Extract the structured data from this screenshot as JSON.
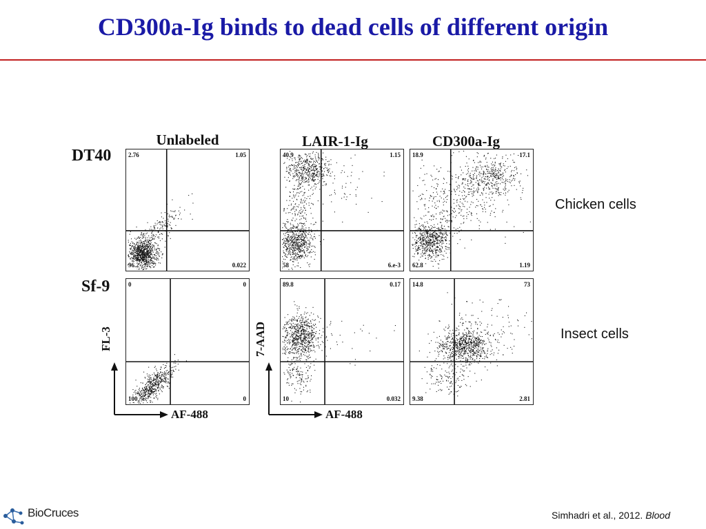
{
  "title": "CD300a-Ig binds to dead cells of different origin",
  "columns": [
    "Unlabeled",
    "LAIR-1-Ig",
    "CD300a-Ig"
  ],
  "rows": [
    "DT40",
    "Sf-9"
  ],
  "row_descriptions": [
    "Chicken cells",
    "Insect cells"
  ],
  "axes": {
    "x_label": "AF-488",
    "y_label_unlabeled": "FL-3",
    "y_label_stained": "7-AAD"
  },
  "panels": [
    {
      "row": "DT40",
      "col": "Unlabeled",
      "ul": "2.76",
      "ur": "1.05",
      "ll": "96.2",
      "lr": "0.022"
    },
    {
      "row": "DT40",
      "col": "LAIR-1-Ig",
      "ul": "40.9",
      "ur": "1.15",
      "ll": "58",
      "lr": "6.e-3"
    },
    {
      "row": "DT40",
      "col": "CD300a-Ig",
      "ul": "18.9",
      "ur": "17.1",
      "ll": "62.8",
      "lr": "1.19"
    },
    {
      "row": "Sf-9",
      "col": "Unlabeled",
      "ul": "0",
      "ur": "0",
      "ll": "100",
      "lr": "0"
    },
    {
      "row": "Sf-9",
      "col": "LAIR-1-Ig",
      "ul": "89.8",
      "ur": "0.17",
      "ll": "10",
      "lr": "0.032"
    },
    {
      "row": "Sf-9",
      "col": "CD300a-Ig",
      "ul": "14.8",
      "ur": "73",
      "ll": "9.38",
      "lr": "2.81"
    }
  ],
  "citation": {
    "authors": "Simhadri et al., 2012.",
    "journal": "Blood"
  },
  "logo": {
    "text": "BioCruces"
  },
  "colors": {
    "title": "#1a1aa6",
    "rule": "#c21f1f"
  }
}
